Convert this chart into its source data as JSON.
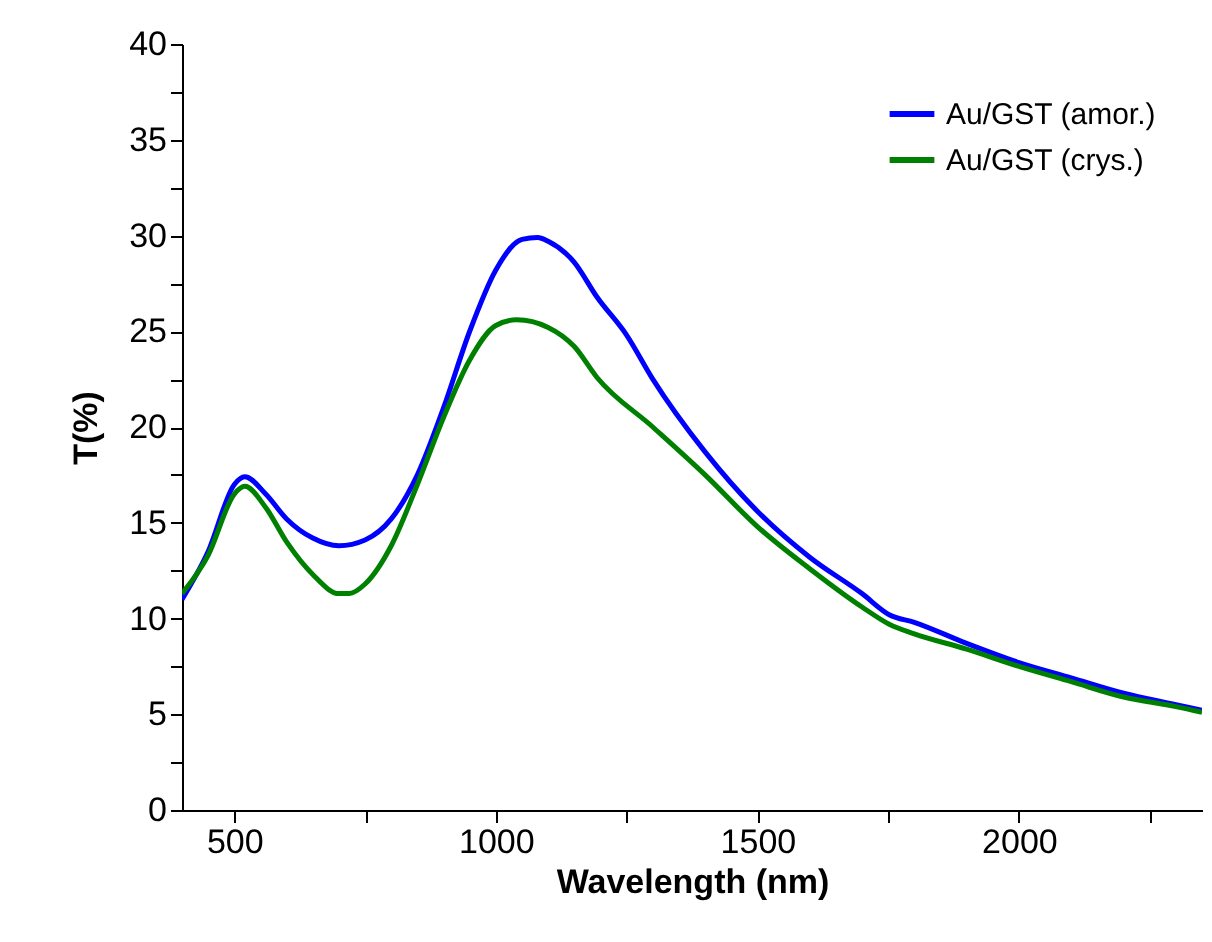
{
  "chart_data": {
    "type": "line",
    "xlabel": "Wavelength (nm)",
    "ylabel": "T(%)",
    "xlim": [
      400,
      2350
    ],
    "ylim": [
      0,
      40
    ],
    "xticks": [
      500,
      {
        "value": 750,
        "label": null
      },
      1000,
      {
        "value": 1250,
        "label": null
      },
      1500,
      {
        "value": 1750,
        "label": null
      },
      2000,
      {
        "value": 2250,
        "label": null
      }
    ],
    "yticks": [
      0,
      {
        "value": 2.5,
        "label": null
      },
      5,
      {
        "value": 7.5,
        "label": null
      },
      10,
      {
        "value": 12.5,
        "label": null
      },
      15,
      {
        "value": 17.5,
        "label": null
      },
      20,
      {
        "value": 22.5,
        "label": null
      },
      25,
      {
        "value": 27.5,
        "label": null
      },
      30,
      {
        "value": 32.5,
        "label": null
      },
      35,
      {
        "value": 37.5,
        "label": null
      },
      40
    ],
    "grid": false,
    "legend": "top right",
    "line_style": "solid",
    "marker": "none",
    "series": [
      {
        "name": "Au/GST (amor.)",
        "color": "#0000ff",
        "x": [
          400,
          450,
          500,
          520,
          560,
          600,
          650,
          700,
          750,
          800,
          850,
          900,
          950,
          1000,
          1050,
          1080,
          1100,
          1150,
          1193,
          1250,
          1300,
          1400,
          1500,
          1600,
          1700,
          1752,
          1800,
          1900,
          2000,
          2100,
          2200,
          2300,
          2350
        ],
        "values": [
          11,
          13.5,
          17,
          17.4,
          16.5,
          15.2,
          14.2,
          13.8,
          14.1,
          15.2,
          17.5,
          21,
          25,
          28.2,
          29.8,
          29.9,
          29.7,
          28.6,
          26.8,
          24.8,
          22.5,
          18.7,
          15.6,
          13.2,
          11.3,
          10.2,
          9.8,
          8.7,
          7.7,
          6.9,
          6.1,
          5.5,
          5.2
        ]
      },
      {
        "name": "Au/GST (crys.)",
        "color": "#008000",
        "x": [
          400,
          450,
          500,
          520,
          560,
          600,
          650,
          700,
          720,
          750,
          800,
          850,
          900,
          950,
          1000,
          1040,
          1100,
          1150,
          1193,
          1300,
          1400,
          1500,
          1600,
          1700,
          1752,
          1800,
          1900,
          2000,
          2100,
          2200,
          2300,
          2350
        ],
        "values": [
          11.3,
          13.3,
          16.5,
          16.9,
          15.8,
          14,
          12.3,
          11.3,
          11.3,
          11.8,
          13.8,
          17,
          20.5,
          23.5,
          25.3,
          25.6,
          25.2,
          24.2,
          22.6,
          20.0,
          17.5,
          14.8,
          12.6,
          10.6,
          9.7,
          9.2,
          8.4,
          7.5,
          6.7,
          5.9,
          5.4,
          5.1
        ]
      }
    ]
  }
}
